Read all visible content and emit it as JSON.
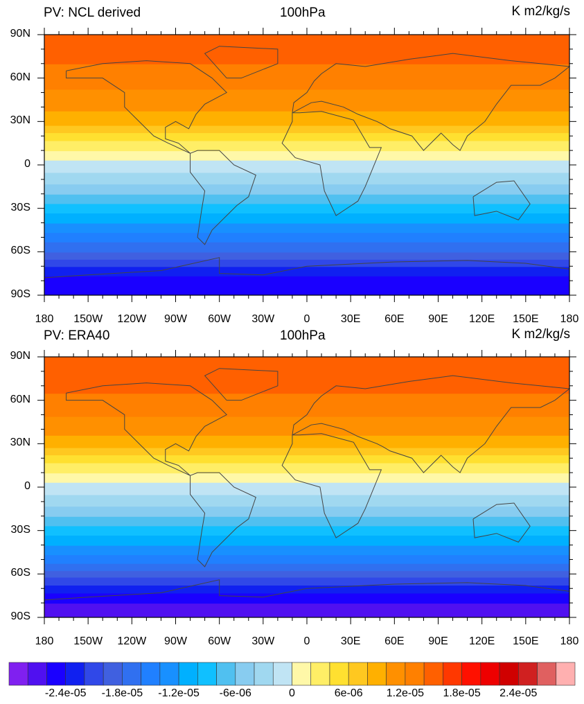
{
  "panels": [
    {
      "title_left": "PV: NCL derived",
      "title_center": "100hPa",
      "title_right": "K m2/kg/s",
      "field_approx": {
        "lat": [
          90,
          75,
          60,
          45,
          30,
          20,
          10,
          0,
          -10,
          -20,
          -30,
          -40,
          -50,
          -60,
          -70,
          -80,
          -90
        ],
        "value": [
          1.5e-05,
          1.45e-05,
          1.3e-05,
          1.1e-05,
          9e-06,
          5e-06,
          2e-06,
          -1e-06,
          -3e-06,
          -6e-06,
          -9e-06,
          -1.2e-05,
          -1.5e-05,
          -1.8e-05,
          -2.2e-05,
          -2.5e-05,
          -2.5e-05
        ]
      }
    },
    {
      "title_left": "PV: ERA40",
      "title_center": "100hPa",
      "title_right": "K m2/kg/s",
      "field_approx": {
        "lat": [
          90,
          75,
          60,
          45,
          30,
          20,
          10,
          0,
          -10,
          -20,
          -30,
          -40,
          -50,
          -60,
          -70,
          -80,
          -90
        ],
        "value": [
          1.55e-05,
          1.5e-05,
          1.35e-05,
          1.15e-05,
          9e-06,
          5e-06,
          2e-06,
          -1e-06,
          -3e-06,
          -6e-06,
          -9e-06,
          -1.2e-05,
          -1.5e-05,
          -1.9e-05,
          -2.3e-05,
          -2.6e-05,
          -2.8e-05
        ]
      }
    }
  ],
  "lat_labels": [
    "90N",
    "60N",
    "30N",
    "0",
    "30S",
    "60S",
    "90S"
  ],
  "lon_labels": [
    "180",
    "150W",
    "120W",
    "90W",
    "60W",
    "30W",
    "0",
    "30E",
    "60E",
    "90E",
    "120E",
    "150E",
    "180"
  ],
  "colorbar": {
    "levels_min": -2.8e-05,
    "levels_max": 2.8e-05,
    "level_step": 2e-06,
    "labels": [
      "-2.4e-05",
      "-1.8e-05",
      "-1.2e-05",
      "-6e-06",
      "0",
      "6e-06",
      "1.2e-05",
      "1.8e-05",
      "2.4e-05"
    ],
    "colors": [
      "#8020f0",
      "#5010f0",
      "#1a00ff",
      "#1020f0",
      "#3048e8",
      "#4060e0",
      "#3070f0",
      "#2080ff",
      "#1890ff",
      "#00b0ff",
      "#10c0ff",
      "#50c0f0",
      "#88ccf0",
      "#a0d8f0",
      "#c0e4f4",
      "#fff8a8",
      "#ffee66",
      "#ffe030",
      "#ffc820",
      "#ffb000",
      "#ff9000",
      "#ff8000",
      "#ff6000",
      "#ff3800",
      "#ff1000",
      "#ee0000",
      "#d00000",
      "#d02020",
      "#e06060",
      "#ffb0b0"
    ]
  }
}
